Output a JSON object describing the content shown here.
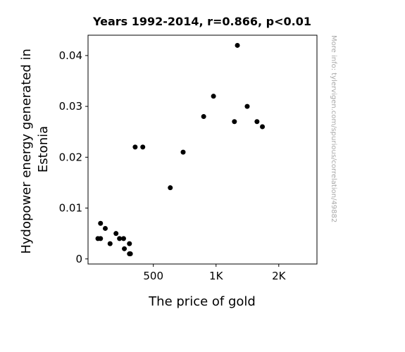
{
  "chart_data": {
    "type": "scatter",
    "title": "Years 1992-2014, r=0.866, p<0.01",
    "xlabel": "The price of gold",
    "ylabel_lines": [
      "Hydopower energy generated in",
      "Estonia"
    ],
    "watermark": "More info: tylervigen.com/spurious/correlation/49882",
    "x_scale": "log",
    "xlim": [
      243,
      3050
    ],
    "ylim": [
      -0.001,
      0.044
    ],
    "x_ticks": [
      {
        "value": 500,
        "label": "500"
      },
      {
        "value": 1000,
        "label": "1K"
      },
      {
        "value": 2000,
        "label": "2K"
      }
    ],
    "y_ticks": [
      {
        "value": 0,
        "label": "0"
      },
      {
        "value": 0.01,
        "label": "0.01"
      },
      {
        "value": 0.02,
        "label": "0.02"
      },
      {
        "value": 0.03,
        "label": "0.03"
      },
      {
        "value": 0.04,
        "label": "0.04"
      }
    ],
    "point_color": "#000000",
    "points": [
      {
        "x": 344,
        "y": 0.004
      },
      {
        "x": 360,
        "y": 0.004
      },
      {
        "x": 384,
        "y": 0.003
      },
      {
        "x": 384,
        "y": 0.001
      },
      {
        "x": 388,
        "y": 0.001
      },
      {
        "x": 331,
        "y": 0.005
      },
      {
        "x": 294,
        "y": 0.006
      },
      {
        "x": 279,
        "y": 0.007
      },
      {
        "x": 279,
        "y": 0.004
      },
      {
        "x": 271,
        "y": 0.004
      },
      {
        "x": 310,
        "y": 0.003
      },
      {
        "x": 363,
        "y": 0.002
      },
      {
        "x": 409,
        "y": 0.022
      },
      {
        "x": 445,
        "y": 0.022
      },
      {
        "x": 603,
        "y": 0.014
      },
      {
        "x": 695,
        "y": 0.021
      },
      {
        "x": 872,
        "y": 0.028
      },
      {
        "x": 972,
        "y": 0.032
      },
      {
        "x": 1225,
        "y": 0.027
      },
      {
        "x": 1572,
        "y": 0.027
      },
      {
        "x": 1669,
        "y": 0.026
      },
      {
        "x": 1411,
        "y": 0.03
      },
      {
        "x": 1266,
        "y": 0.042
      }
    ]
  }
}
